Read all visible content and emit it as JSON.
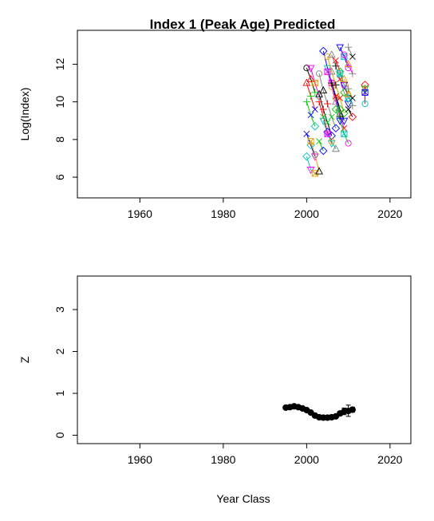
{
  "chart_data": [
    {
      "type": "line",
      "title": "Index 1 (Peak Age) Predicted",
      "xlabel": "",
      "ylabel": "Log(Index)",
      "xlim": [
        1945,
        2025
      ],
      "ylim": [
        4.9,
        13.8
      ],
      "xticks": [
        "1960",
        "1980",
        "2000",
        "2020"
      ],
      "xtick_values": [
        1960,
        1980,
        2000,
        2020
      ],
      "yticks": [
        "6",
        "8",
        "10",
        "12"
      ],
      "ytick_values": [
        6,
        8,
        10,
        12
      ],
      "grid": false,
      "legend": "none",
      "series": [
        {
          "values": [
            [
              2000,
              11.8
            ],
            [
              2001,
              11.2
            ],
            [
              2002,
              10.5
            ]
          ]
        },
        {
          "values": [
            [
              2000,
              11.0
            ],
            [
              2001,
              10.3
            ],
            [
              2002,
              9.6
            ]
          ]
        },
        {
          "values": [
            [
              2000,
              10.0
            ],
            [
              2001,
              9.3
            ],
            [
              2002,
              8.7
            ]
          ]
        },
        {
          "values": [
            [
              2000,
              8.3
            ],
            [
              2001,
              7.7
            ],
            [
              2002,
              7.1
            ]
          ]
        },
        {
          "values": [
            [
              2000,
              7.1
            ],
            [
              2001,
              6.4
            ],
            [
              2002,
              6.2
            ]
          ]
        },
        {
          "values": [
            [
              2001,
              11.8
            ],
            [
              2002,
              11.0
            ],
            [
              2003,
              10.3
            ]
          ]
        },
        {
          "values": [
            [
              2001,
              7.9
            ],
            [
              2002,
              7.2
            ],
            [
              2003,
              6.3
            ]
          ]
        },
        {
          "values": [
            [
              2003,
              11.5
            ],
            [
              2004,
              10.6
            ],
            [
              2005,
              9.9
            ],
            [
              2006,
              9.2
            ],
            [
              2007,
              8.6
            ]
          ]
        },
        {
          "values": [
            [
              2003,
              10.4
            ],
            [
              2004,
              9.6
            ],
            [
              2005,
              8.9
            ],
            [
              2006,
              8.2
            ]
          ]
        },
        {
          "values": [
            [
              2003,
              10.0
            ],
            [
              2004,
              9.2
            ],
            [
              2005,
              8.4
            ],
            [
              2006,
              7.8
            ]
          ]
        },
        {
          "values": [
            [
              2003,
              7.9
            ],
            [
              2004,
              7.4
            ]
          ]
        },
        {
          "values": [
            [
              2004,
              12.7
            ],
            [
              2005,
              11.8
            ],
            [
              2006,
              11.0
            ],
            [
              2007,
              10.2
            ],
            [
              2008,
              9.4
            ]
          ]
        },
        {
          "values": [
            [
              2004,
              9.0
            ],
            [
              2005,
              8.3
            ],
            [
              2006,
              7.9
            ],
            [
              2007,
              7.5
            ]
          ]
        },
        {
          "values": [
            [
              2005,
              11.6
            ],
            [
              2006,
              10.8
            ],
            [
              2007,
              10.0
            ],
            [
              2008,
              9.2
            ],
            [
              2009,
              8.6
            ]
          ]
        },
        {
          "values": [
            [
              2005,
              12.4
            ],
            [
              2006,
              11.6
            ],
            [
              2007,
              10.9
            ],
            [
              2008,
              10.2
            ],
            [
              2009,
              9.4
            ]
          ]
        },
        {
          "values": [
            [
              2006,
              12.5
            ],
            [
              2007,
              11.9
            ],
            [
              2008,
              11.2
            ],
            [
              2009,
              10.5
            ],
            [
              2010,
              9.9
            ]
          ]
        },
        {
          "values": [
            [
              2006,
              11.0
            ],
            [
              2007,
              10.3
            ],
            [
              2008,
              9.6
            ],
            [
              2009,
              9.0
            ]
          ]
        },
        {
          "values": [
            [
              2007,
              12.2
            ],
            [
              2008,
              11.6
            ],
            [
              2009,
              10.9
            ],
            [
              2010,
              10.2
            ]
          ]
        },
        {
          "values": [
            [
              2007,
              9.6
            ],
            [
              2008,
              9.0
            ],
            [
              2009,
              8.3
            ],
            [
              2010,
              7.8
            ]
          ]
        },
        {
          "values": [
            [
              2008,
              12.9
            ],
            [
              2009,
              12.4
            ],
            [
              2010,
              11.8
            ]
          ]
        },
        {
          "values": [
            [
              2008,
              11.5
            ],
            [
              2009,
              10.9
            ],
            [
              2010,
              10.4
            ],
            [
              2011,
              9.8
            ]
          ]
        },
        {
          "values": [
            [
              2009,
              12.5
            ],
            [
              2010,
              12.0
            ],
            [
              2011,
              11.5
            ]
          ]
        },
        {
          "values": [
            [
              2009,
              11.2
            ],
            [
              2010,
              10.7
            ],
            [
              2011,
              10.2
            ]
          ]
        },
        {
          "values": [
            [
              2010,
              12.9
            ],
            [
              2011,
              12.4
            ]
          ]
        },
        {
          "values": [
            [
              2010,
              9.6
            ],
            [
              2011,
              9.2
            ]
          ]
        },
        {
          "values": [
            [
              2014,
              10.9
            ],
            [
              2014,
              10.7
            ],
            [
              2014,
              10.5
            ],
            [
              2014,
              9.9
            ]
          ]
        }
      ]
    },
    {
      "type": "line",
      "title": "",
      "xlabel": "Year Class",
      "ylabel": "Z",
      "xlim": [
        1945,
        2025
      ],
      "ylim": [
        -0.2,
        3.8
      ],
      "xticks": [
        "1960",
        "1980",
        "2000",
        "2020"
      ],
      "xtick_values": [
        1960,
        1980,
        2000,
        2020
      ],
      "yticks": [
        "0",
        "1",
        "2",
        "3"
      ],
      "ytick_values": [
        0,
        1,
        2,
        3
      ],
      "grid": false,
      "legend": "none",
      "x": [
        1995,
        1996,
        1997,
        1998,
        1999,
        2000,
        2001,
        2002,
        2003,
        2004,
        2005,
        2006,
        2007,
        2008,
        2009,
        2010,
        2011
      ],
      "series": [
        {
          "values": [
            0.66,
            0.67,
            0.69,
            0.67,
            0.64,
            0.6,
            0.54,
            0.47,
            0.43,
            0.42,
            0.42,
            0.43,
            0.45,
            0.52,
            0.57,
            0.58,
            0.61
          ],
          "error_low": [
            0.64,
            0.65,
            0.67,
            0.65,
            0.62,
            0.58,
            0.52,
            0.45,
            0.41,
            0.4,
            0.4,
            0.41,
            0.42,
            0.47,
            0.49,
            0.45,
            0.55
          ],
          "error_high": [
            0.68,
            0.69,
            0.71,
            0.69,
            0.66,
            0.62,
            0.56,
            0.49,
            0.45,
            0.44,
            0.44,
            0.45,
            0.48,
            0.57,
            0.65,
            0.72,
            0.67
          ]
        }
      ]
    }
  ],
  "colors": {
    "line_palette": [
      "#000000",
      "#ff0000",
      "#00cd00",
      "#0000ff",
      "#00bfbf",
      "#ff00ff",
      "#e6a000",
      "#808080"
    ],
    "axis": "#000000",
    "background": "#ffffff"
  },
  "marker_symbols": [
    "circle",
    "triangle",
    "plus",
    "x",
    "diamond",
    "triangle-down",
    "square-x"
  ]
}
